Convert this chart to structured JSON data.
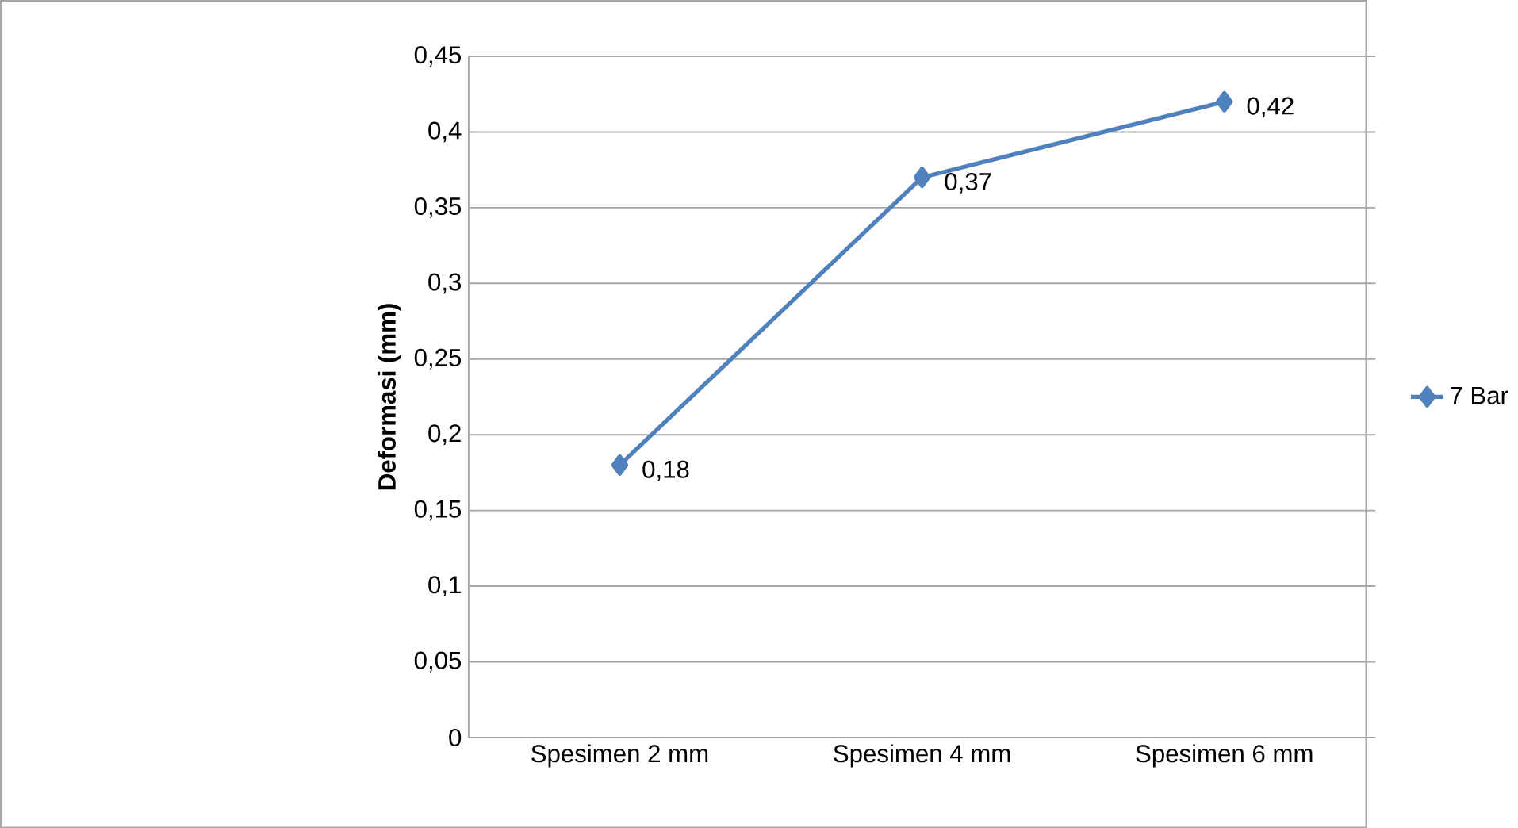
{
  "chart_data": {
    "type": "line",
    "ylabel": "Deformasi (mm)",
    "categories": [
      "Spesimen 2 mm",
      "Spesimen 4 mm",
      "Spesimen 6 mm"
    ],
    "series": [
      {
        "name": "7 Bar",
        "color": "#4f81bd",
        "values": [
          0.18,
          0.37,
          0.42
        ],
        "value_labels": [
          "0,18",
          "0,37",
          "0,42"
        ]
      }
    ],
    "ylim": [
      0,
      0.45
    ],
    "yticks": [
      0,
      {
        "value": 0.05,
        "label": "0,05"
      },
      {
        "value": 0.1,
        "label": "0,1"
      },
      {
        "value": 0.15,
        "label": "0,15"
      },
      {
        "value": 0.2,
        "label": "0,2"
      },
      {
        "value": 0.25,
        "label": "0,25"
      },
      {
        "value": 0.3,
        "label": "0,3"
      },
      {
        "value": 0.35,
        "label": "0,35"
      },
      {
        "value": 0.4,
        "label": "0,4"
      },
      {
        "value": 0.45,
        "label": "0,45"
      }
    ],
    "grid": "y",
    "legend": "right",
    "marker": "diamond",
    "line_style": "solid"
  }
}
